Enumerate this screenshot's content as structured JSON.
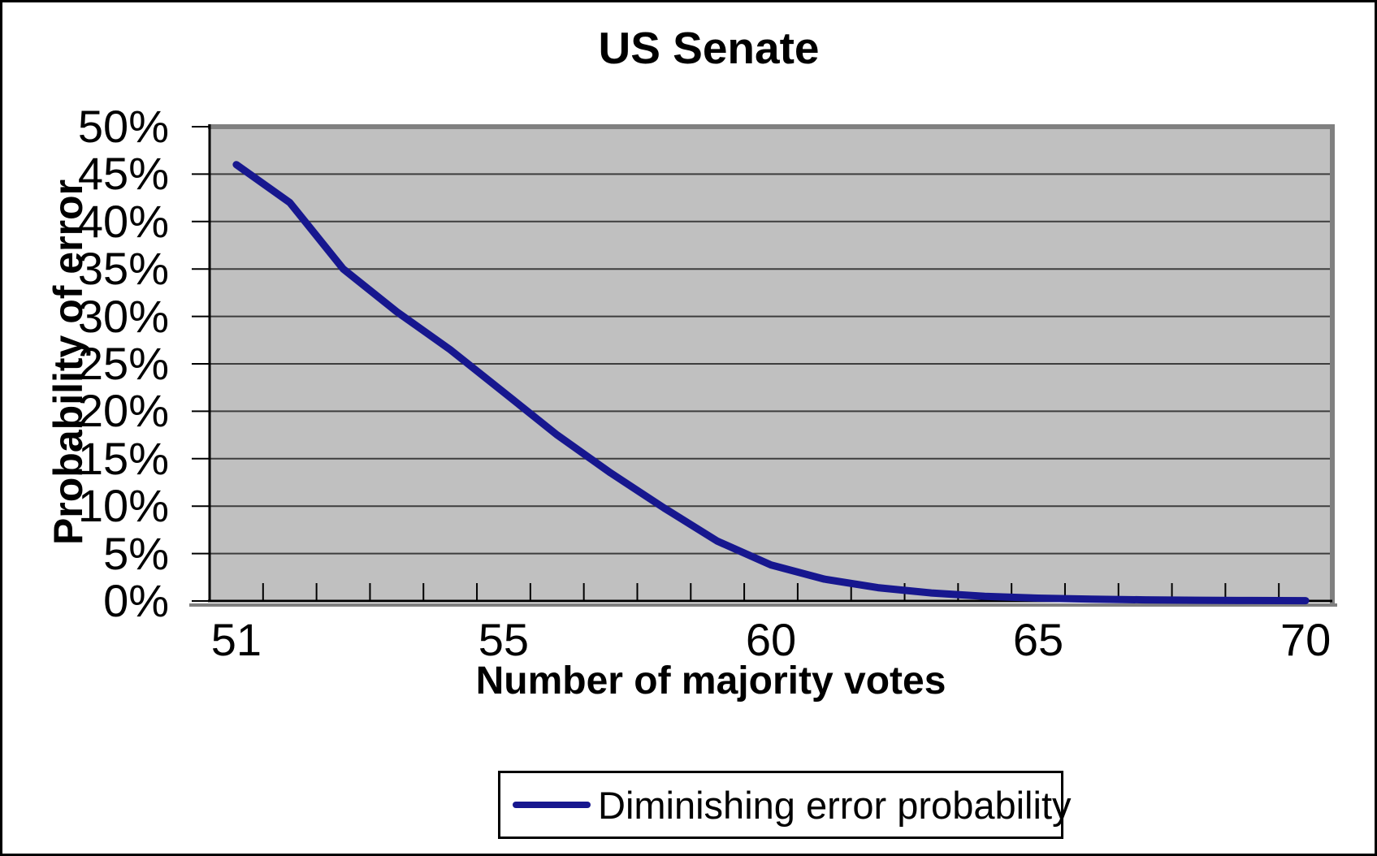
{
  "figure": {
    "title": "US Senate",
    "y_axis": {
      "title": "Probability of error",
      "tick_labels": [
        "50%",
        "45%",
        "40%",
        "35%",
        "30%",
        "25%",
        "20%",
        "15%",
        "10%",
        "5%",
        "0%"
      ]
    },
    "x_axis": {
      "title": "Number of majority votes",
      "tick_labels": [
        "51",
        "55",
        "60",
        "65",
        "70"
      ]
    },
    "legend": {
      "series_label": "Diminishing error probability"
    }
  },
  "colors": {
    "series_line": "#17178f",
    "plot_background": "#c0c0c0",
    "gridline": "#3d3d3d",
    "axis_line": "#000000",
    "plot_border_gray": "#808080",
    "canvas_background": "#ffffff",
    "outer_border": "#000000"
  },
  "chart_data": {
    "type": "line",
    "title": "US Senate",
    "xlabel": "Number of majority votes",
    "ylabel": "Probability of error",
    "x_tick_labels": [
      "51",
      "55",
      "60",
      "65",
      "70"
    ],
    "x_tick_slot_indices": [
      0,
      5,
      10,
      15,
      20
    ],
    "n_points": 21,
    "series": [
      {
        "name": "Diminishing error probability",
        "values_percent": [
          46,
          42,
          35,
          30.5,
          26.5,
          22,
          17.5,
          13.5,
          9.8,
          6.3,
          3.8,
          2.3,
          1.4,
          0.85,
          0.5,
          0.3,
          0.2,
          0.12,
          0.08,
          0.05,
          0.03
        ]
      }
    ],
    "ylim_percent": [
      0,
      50
    ],
    "y_tick_step_percent": 5,
    "grid": "horizontal-only",
    "legend_position": "bottom-center",
    "x_axis_note": "21 evenly spaced points along a category axis; printed tick labels sit under points 1, 6, 11, 16 and 21"
  }
}
